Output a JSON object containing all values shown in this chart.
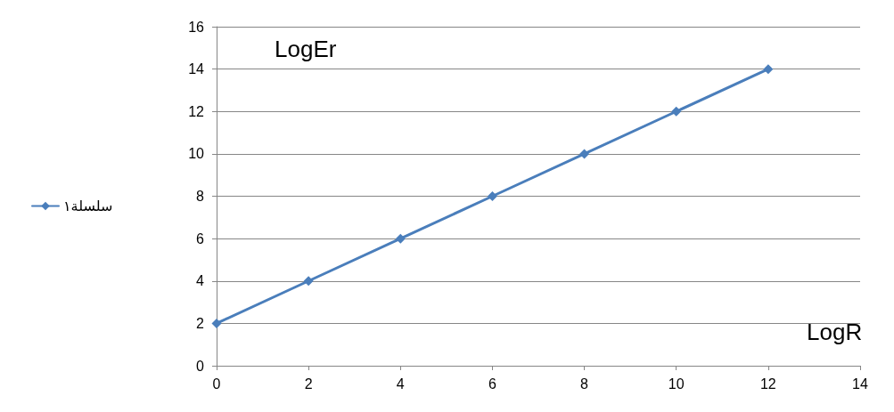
{
  "chart_data": {
    "type": "line",
    "xlabel": "LogR",
    "ylabel": "LogEr",
    "x": [
      0,
      2,
      4,
      6,
      8,
      10,
      12
    ],
    "series": [
      {
        "name": "سلسلة١",
        "color": "#4a7ebb",
        "values": [
          2,
          4,
          6,
          8,
          10,
          12,
          14
        ]
      }
    ],
    "xlim": [
      0,
      14
    ],
    "xticks": [
      0,
      2,
      4,
      6,
      8,
      10,
      12,
      14
    ],
    "ylim": [
      0,
      16
    ],
    "yticks": [
      0,
      2,
      4,
      6,
      8,
      10,
      12,
      14,
      16
    ],
    "grid": "y",
    "legend": "left",
    "marker": "diamond",
    "line_style": "solid"
  }
}
